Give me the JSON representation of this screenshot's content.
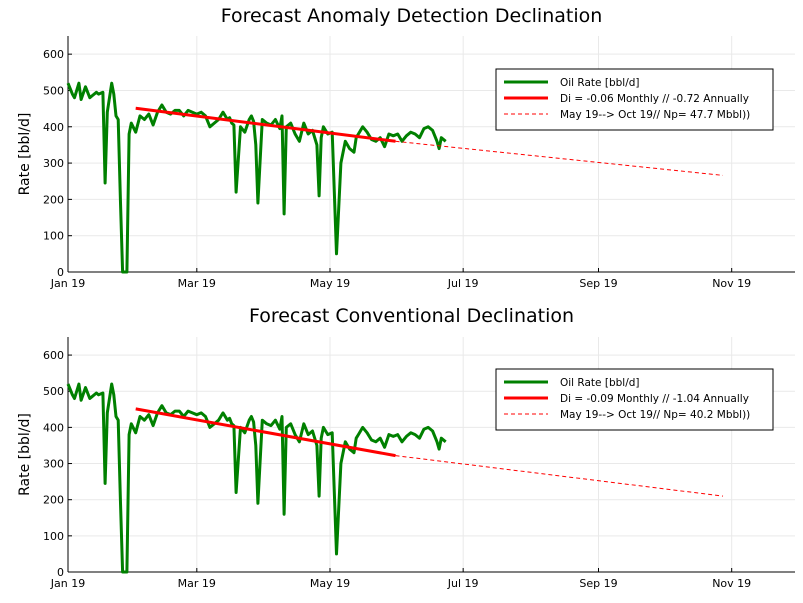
{
  "chart_data": [
    {
      "type": "line",
      "title": "Forecast Anomaly Detection Declination",
      "xlabel": "",
      "ylabel": "Rate [bbl/d]",
      "x_ticks": [
        "Jan 19",
        "Mar 19",
        "May 19",
        "Jul 19",
        "Sep 19",
        "Nov 19"
      ],
      "y_ticks": [
        "0",
        "100",
        "200",
        "300",
        "400",
        "500",
        "600"
      ],
      "xlim": [
        "2019-01-01",
        "2019-11-30"
      ],
      "ylim": [
        0,
        650
      ],
      "grid": true,
      "legend_position": "top-right",
      "series": [
        {
          "name": "Oil Rate [bbl/d]",
          "color": "#008000",
          "style": "solid-thick",
          "x": [
            "2019-01-01",
            "2019-01-03",
            "2019-01-04",
            "2019-01-06",
            "2019-01-07",
            "2019-01-09",
            "2019-01-11",
            "2019-01-12",
            "2019-01-14",
            "2019-01-15",
            "2019-01-17",
            "2019-01-18",
            "2019-01-19",
            "2019-01-21",
            "2019-01-22",
            "2019-01-23",
            "2019-01-24",
            "2019-01-25",
            "2019-01-26",
            "2019-01-27",
            "2019-01-28",
            "2019-01-29",
            "2019-01-30",
            "2019-02-01",
            "2019-02-03",
            "2019-02-05",
            "2019-02-07",
            "2019-02-09",
            "2019-02-11",
            "2019-02-13",
            "2019-02-15",
            "2019-02-17",
            "2019-02-19",
            "2019-02-21",
            "2019-02-23",
            "2019-02-25",
            "2019-02-27",
            "2019-03-01",
            "2019-03-03",
            "2019-03-05",
            "2019-03-07",
            "2019-03-09",
            "2019-03-11",
            "2019-03-13",
            "2019-03-15",
            "2019-03-16",
            "2019-03-17",
            "2019-03-18",
            "2019-03-19",
            "2019-03-21",
            "2019-03-23",
            "2019-03-25",
            "2019-03-26",
            "2019-03-27",
            "2019-03-28",
            "2019-03-29",
            "2019-03-31",
            "2019-04-02",
            "2019-04-04",
            "2019-04-06",
            "2019-04-08",
            "2019-04-09",
            "2019-04-10",
            "2019-04-11",
            "2019-04-13",
            "2019-04-15",
            "2019-04-17",
            "2019-04-19",
            "2019-04-21",
            "2019-04-23",
            "2019-04-25",
            "2019-04-26",
            "2019-04-27",
            "2019-04-28",
            "2019-04-30",
            "2019-05-02",
            "2019-05-04",
            "2019-05-06",
            "2019-05-07",
            "2019-05-08",
            "2019-05-10",
            "2019-05-12",
            "2019-05-13",
            "2019-05-14",
            "2019-05-16",
            "2019-05-18",
            "2019-05-20",
            "2019-05-22",
            "2019-05-24",
            "2019-05-26",
            "2019-05-28",
            "2019-05-30",
            "2019-06-01",
            "2019-06-03",
            "2019-06-05",
            "2019-06-07",
            "2019-06-09",
            "2019-06-11",
            "2019-06-13",
            "2019-06-15",
            "2019-06-17",
            "2019-06-19",
            "2019-06-20",
            "2019-06-21",
            "2019-06-23"
          ],
          "y": [
            520,
            490,
            480,
            520,
            475,
            510,
            480,
            485,
            495,
            490,
            495,
            245,
            440,
            520,
            490,
            430,
            420,
            200,
            0,
            0,
            0,
            380,
            410,
            385,
            430,
            420,
            435,
            405,
            440,
            460,
            440,
            435,
            445,
            445,
            430,
            445,
            440,
            435,
            440,
            430,
            400,
            410,
            420,
            440,
            420,
            425,
            410,
            405,
            220,
            400,
            385,
            420,
            430,
            415,
            350,
            190,
            420,
            410,
            405,
            420,
            395,
            430,
            160,
            400,
            410,
            380,
            360,
            410,
            380,
            390,
            350,
            210,
            370,
            400,
            380,
            385,
            50,
            300,
            330,
            360,
            340,
            330,
            370,
            380,
            400,
            385,
            365,
            360,
            370,
            345,
            380,
            375,
            380,
            360,
            375,
            385,
            380,
            370,
            395,
            400,
            390,
            360,
            340,
            370,
            360
          ],
          "y_panel2": [
            520,
            490,
            480,
            520,
            475,
            510,
            480,
            485,
            495,
            490,
            495,
            245,
            440,
            520,
            490,
            430,
            420,
            200,
            0,
            0,
            0,
            380,
            410,
            385,
            430,
            420,
            435,
            405,
            440,
            460,
            440,
            435,
            445,
            445,
            430,
            445,
            440,
            435,
            440,
            430,
            400,
            410,
            420,
            440,
            420,
            425,
            410,
            405,
            220,
            400,
            385,
            420,
            430,
            415,
            350,
            190,
            420,
            410,
            405,
            420,
            395,
            430,
            160,
            400,
            410,
            380,
            360,
            410,
            380,
            390,
            350,
            210,
            370,
            400,
            380,
            385,
            50,
            300,
            330,
            360,
            340,
            330,
            370,
            380,
            400,
            385,
            365,
            360,
            370,
            345,
            380,
            375,
            380,
            360,
            375,
            385,
            380,
            370,
            395,
            400,
            390,
            360,
            340,
            370,
            360
          ]
        },
        {
          "name": "Di = -0.06 Monthly // -0.72 Annually",
          "color": "#ff0000",
          "style": "solid-thick",
          "x": [
            "2019-02-01",
            "2019-05-31"
          ],
          "y": [
            451,
            360
          ]
        },
        {
          "name": "May 19--> Oct 19// Np= 47.7 Mbbl))",
          "color": "#ff0000",
          "style": "dashed",
          "x": [
            "2019-05-31",
            "2019-10-28"
          ],
          "y": [
            360,
            266
          ]
        }
      ]
    },
    {
      "type": "line",
      "title": "Forecast Conventional Declination",
      "xlabel": "",
      "ylabel": "Rate [bbl/d]",
      "x_ticks": [
        "Jan 19",
        "Mar 19",
        "May 19",
        "Jul 19",
        "Sep 19",
        "Nov 19"
      ],
      "y_ticks": [
        "0",
        "100",
        "200",
        "300",
        "400",
        "500",
        "600"
      ],
      "xlim": [
        "2019-01-01",
        "2019-11-30"
      ],
      "ylim": [
        0,
        650
      ],
      "grid": true,
      "legend_position": "top-right",
      "series": [
        {
          "name": "Oil Rate [bbl/d]",
          "color": "#008000",
          "style": "solid-thick",
          "same_as_panel_1": true
        },
        {
          "name": "Di = -0.09 Monthly // -1.04 Annually",
          "color": "#ff0000",
          "style": "solid-thick",
          "x": [
            "2019-02-01",
            "2019-05-31"
          ],
          "y": [
            451,
            322
          ]
        },
        {
          "name": "May 19--> Oct 19// Np= 40.2 Mbbl))",
          "color": "#ff0000",
          "style": "dashed",
          "x": [
            "2019-05-31",
            "2019-10-28"
          ],
          "y": [
            322,
            210
          ]
        }
      ]
    }
  ]
}
